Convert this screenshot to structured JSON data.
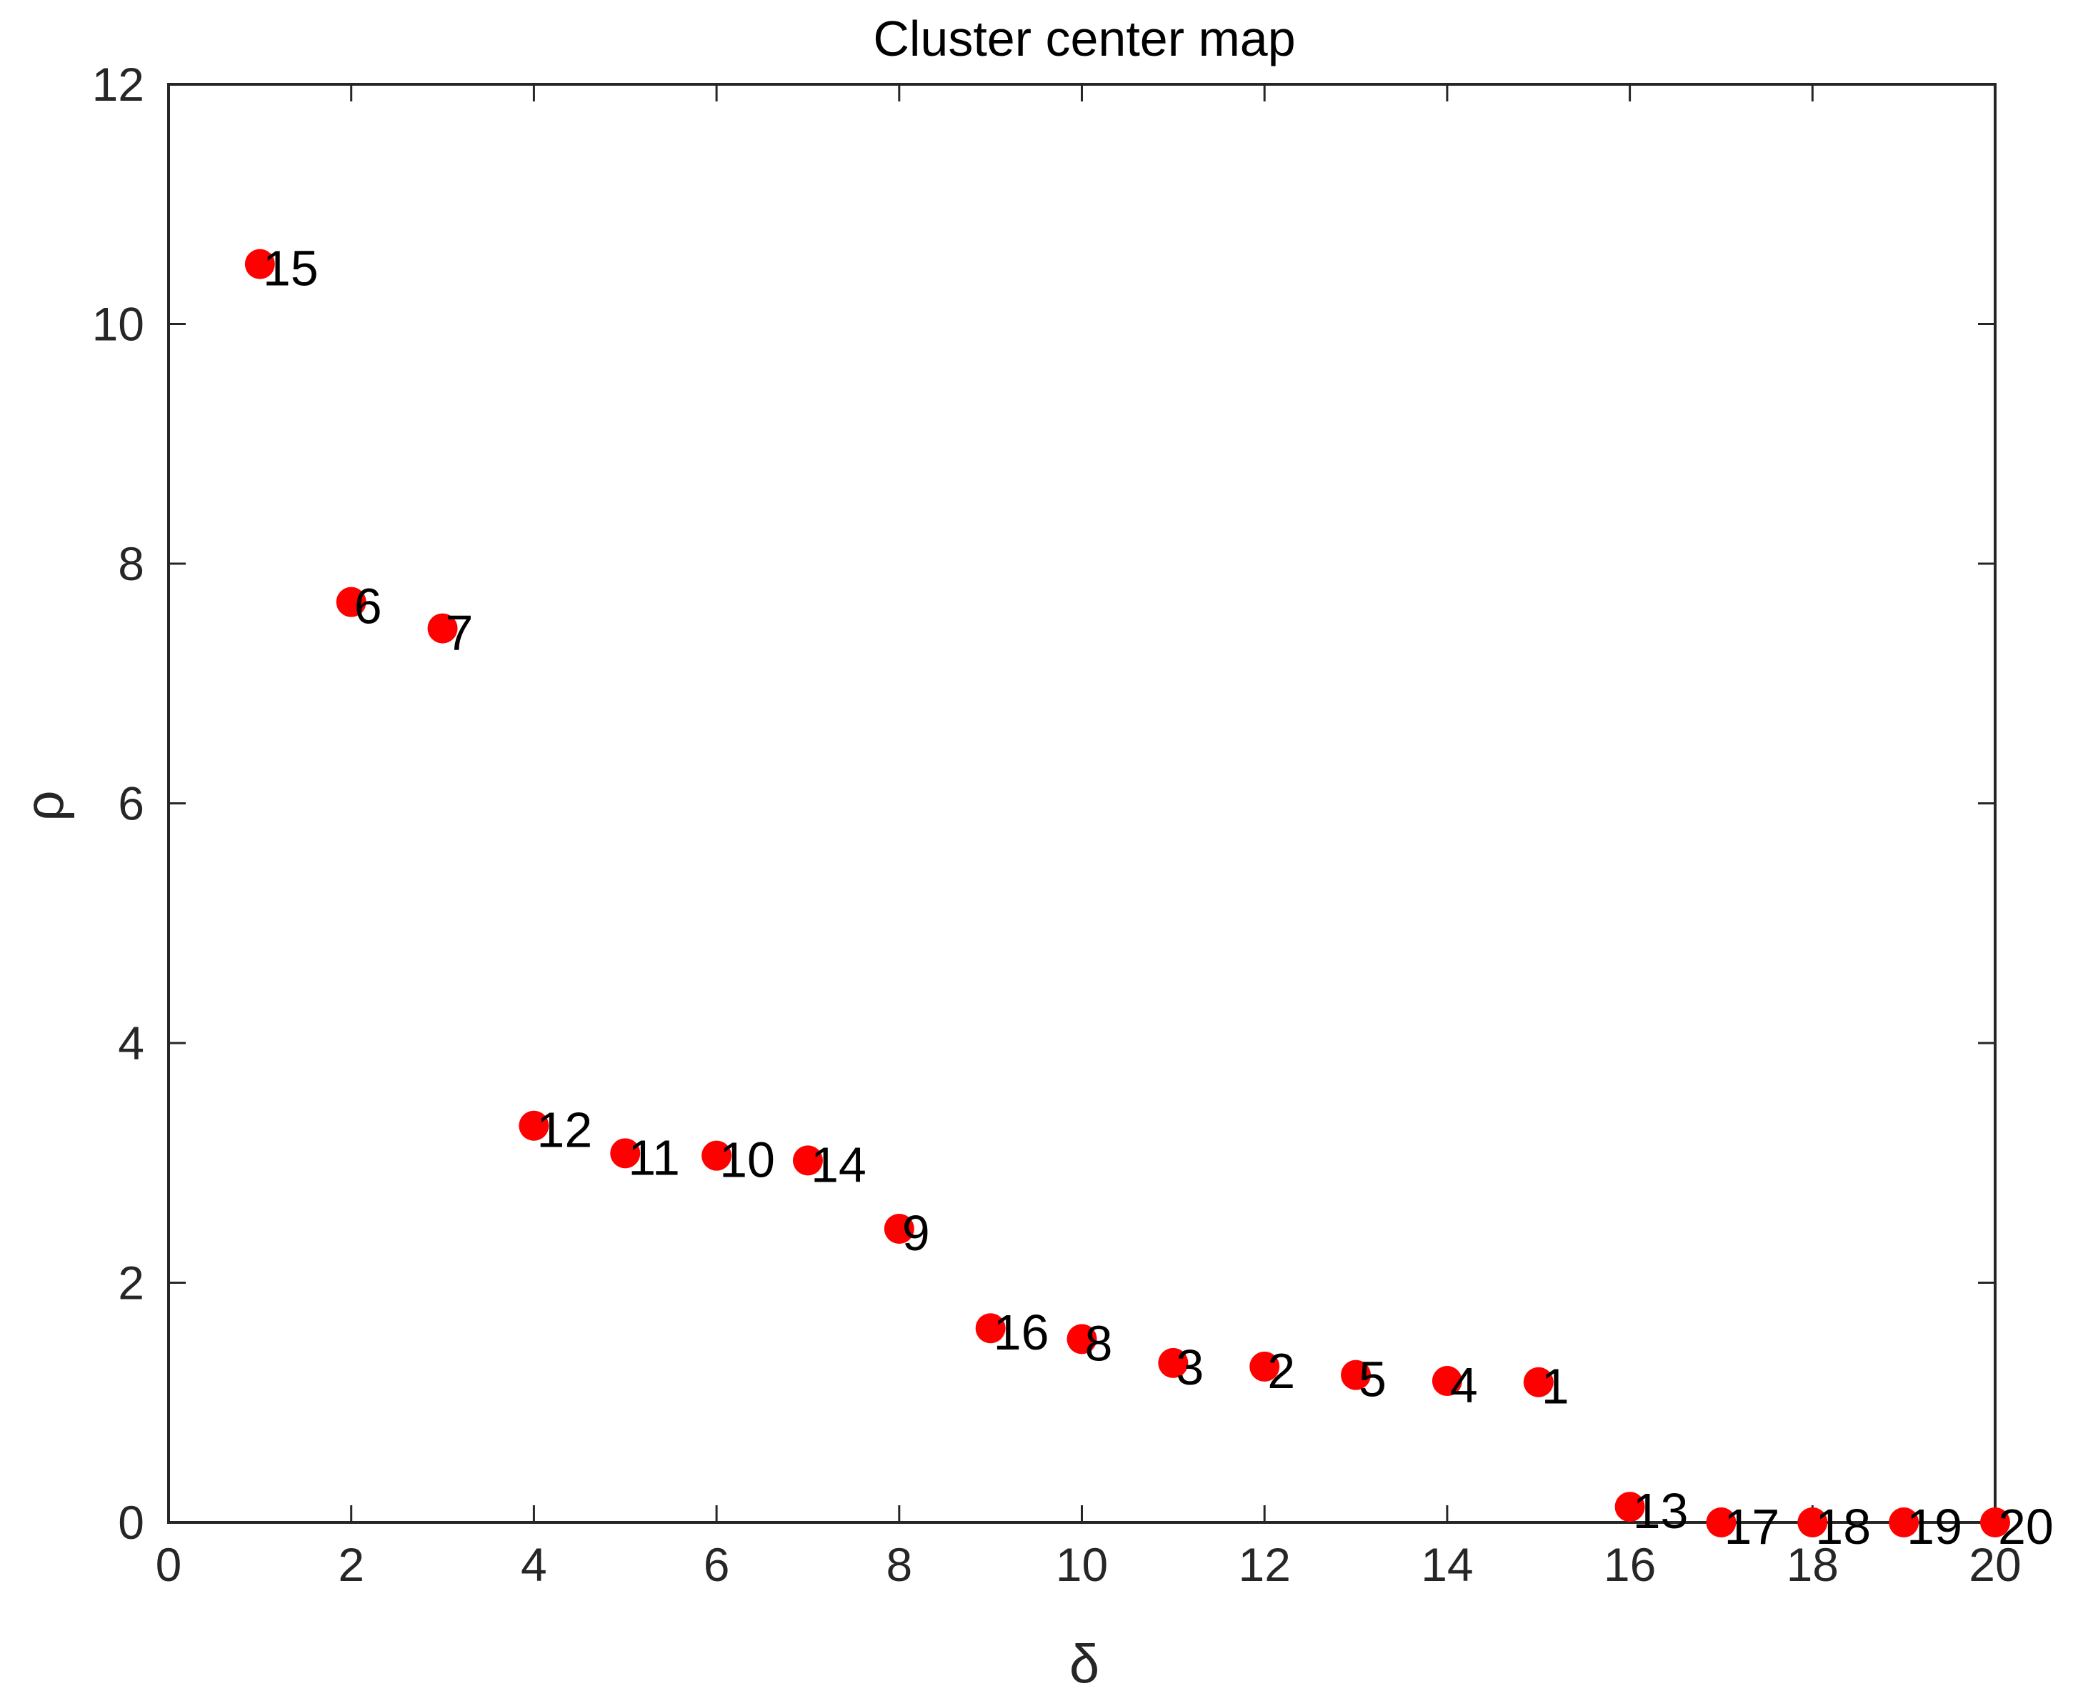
{
  "chart_data": {
    "type": "scatter",
    "title": "Cluster center map",
    "xlabel": "δ",
    "ylabel": "ρ",
    "xlim": [
      0,
      20
    ],
    "ylim": [
      0,
      12
    ],
    "xticks": [
      "0",
      "2",
      "4",
      "6",
      "8",
      "10",
      "12",
      "14",
      "16",
      "18",
      "20"
    ],
    "yticks": [
      "0",
      "2",
      "4",
      "6",
      "8",
      "10",
      "12"
    ],
    "grid": false,
    "legend": "none",
    "marker_color": "#ff0000",
    "axis_color": "#262626",
    "points": [
      {
        "x": 1,
        "y": 10.5,
        "label": "15"
      },
      {
        "x": 2,
        "y": 7.68,
        "label": "6"
      },
      {
        "x": 3,
        "y": 7.46,
        "label": "7"
      },
      {
        "x": 4,
        "y": 3.31,
        "label": "12"
      },
      {
        "x": 5,
        "y": 3.08,
        "label": "11"
      },
      {
        "x": 6,
        "y": 3.06,
        "label": "10"
      },
      {
        "x": 7,
        "y": 3.02,
        "label": "14"
      },
      {
        "x": 8,
        "y": 2.45,
        "label": "9"
      },
      {
        "x": 9,
        "y": 1.62,
        "label": "16"
      },
      {
        "x": 10,
        "y": 1.53,
        "label": "8"
      },
      {
        "x": 11,
        "y": 1.33,
        "label": "3"
      },
      {
        "x": 12,
        "y": 1.3,
        "label": "2"
      },
      {
        "x": 13,
        "y": 1.23,
        "label": "5"
      },
      {
        "x": 14,
        "y": 1.18,
        "label": "4"
      },
      {
        "x": 15,
        "y": 1.17,
        "label": "1"
      },
      {
        "x": 16,
        "y": 0.13,
        "label": "13"
      },
      {
        "x": 17,
        "y": 0.0,
        "label": "17"
      },
      {
        "x": 18,
        "y": 0.0,
        "label": "18"
      },
      {
        "x": 19,
        "y": 0.0,
        "label": "19"
      },
      {
        "x": 20,
        "y": 0.0,
        "label": "20"
      }
    ]
  }
}
